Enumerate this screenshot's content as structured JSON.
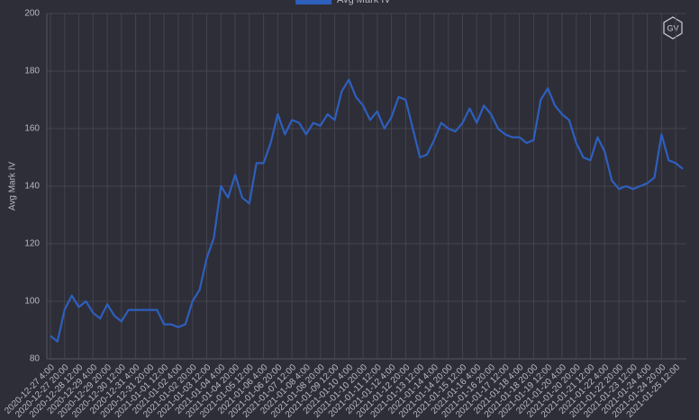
{
  "chart_data": {
    "type": "line",
    "y_label": "Avg Mark IV",
    "logo": "GV",
    "ylim": [
      80,
      200
    ],
    "yticks": [
      80,
      100,
      120,
      140,
      160,
      180,
      200
    ],
    "grid": true,
    "categories": [
      "2020-12-27 4:00",
      null,
      "2020-12-27 20:00",
      null,
      "2020-12-28 12:00",
      null,
      "2020-12-29 4:00",
      null,
      "2020-12-29 20:00",
      null,
      "2020-12-30 12:00",
      null,
      "2020-12-31 4:00",
      null,
      "2020-12-31 20:00",
      null,
      "2021-01-01 12:00",
      null,
      "2021-01-02 4:00",
      null,
      "2021-01-02 20:00",
      null,
      "2021-01-03 12:00",
      null,
      "2021-01-04 4:00",
      null,
      "2021-01-04 20:00",
      null,
      "2021-01-05 12:00",
      null,
      "2021-01-06 4:00",
      null,
      "2021-01-06 20:00",
      null,
      "2021-01-07 12:00",
      null,
      "2021-01-08 4:00",
      null,
      "2021-01-08 20:00",
      null,
      "2021-01-09 12:00",
      null,
      "2021-01-10 4:00",
      null,
      "2021-01-10 20:00",
      null,
      "2021-01-11 12:00",
      null,
      "2021-01-12 4:00",
      null,
      "2021-01-12 20:00",
      null,
      "2021-01-13 12:00",
      null,
      "2021-01-14 4:00",
      null,
      "2021-01-14 20:00",
      null,
      "2021-01-15 12:00",
      null,
      "2021-01-16 4:00",
      null,
      "2021-01-16 20:00",
      null,
      "2021-01-17 12:00",
      null,
      "2021-01-18 4:00",
      null,
      "2021-01-18 20:00",
      null,
      "2021-01-19 12:00",
      null,
      "2021-01-20 4:00",
      null,
      "2021-01-20 20:00",
      null,
      "2021-01-21 12:00",
      null,
      "2021-01-22 4:00",
      null,
      "2021-01-22 20:00",
      null,
      "2021-01-23 12:00",
      null,
      "2021-01-24 4:00",
      null,
      "2021-01-24 20:00",
      null,
      "2021-01-25 12:00",
      null
    ],
    "series": [
      {
        "name": "Avg Mark IV",
        "color": "#2d5fbd",
        "values": [
          88,
          86,
          97,
          102,
          98,
          100,
          96,
          94,
          99,
          95,
          93,
          97,
          97,
          97,
          97,
          97,
          92,
          92,
          91,
          92,
          100,
          104,
          115,
          122,
          140,
          136,
          144,
          136,
          134,
          148,
          148,
          155,
          165,
          158,
          163,
          162,
          158,
          162,
          161,
          165,
          163,
          173,
          177,
          171,
          168,
          163,
          166,
          160,
          164,
          171,
          170,
          160,
          150,
          151,
          156,
          162,
          160,
          159,
          162,
          167,
          162,
          168,
          165,
          160,
          158,
          157,
          157,
          155,
          156,
          170,
          174,
          168,
          165,
          163,
          155,
          150,
          149,
          157,
          152,
          142,
          139,
          140,
          139,
          140,
          141,
          143,
          158,
          149,
          148,
          146
        ]
      }
    ]
  }
}
